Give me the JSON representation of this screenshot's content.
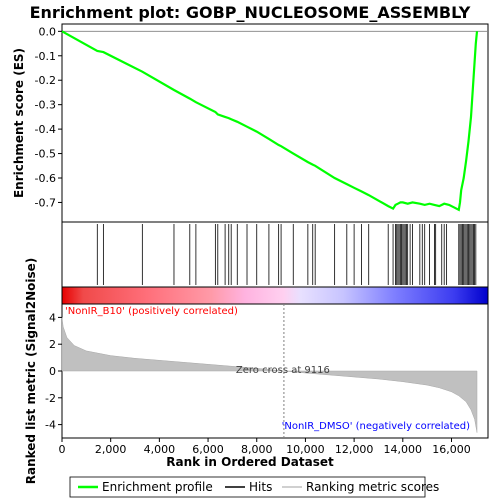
{
  "chart_data": {
    "type": "line",
    "title": "Enrichment plot: GOBP_NUCLEOSOME_ASSEMBLY",
    "colors": {
      "es_line": "#00ff00",
      "hits": "#000000",
      "metric_fill": "#c0c0c0",
      "pos_label": "#ff0000",
      "neg_label": "#0000ff",
      "zero_cross": "#808080"
    },
    "top_panel": {
      "ylabel": "Enrichment score (ES)",
      "ylim": [
        -0.78,
        0.03
      ],
      "yticks": [
        "0.0",
        "-0.1",
        "-0.2",
        "-0.3",
        "-0.4",
        "-0.5",
        "-0.6",
        "-0.7"
      ],
      "ytick_values": [
        0.0,
        -0.1,
        -0.2,
        -0.3,
        -0.4,
        -0.5,
        -0.6,
        -0.7
      ],
      "es_profile": {
        "x": [
          0,
          1450,
          1700,
          3300,
          4600,
          5250,
          5500,
          6300,
          6400,
          6700,
          6850,
          6950,
          7200,
          7600,
          8000,
          8500,
          8900,
          9000,
          9500,
          10100,
          10300,
          10400,
          11200,
          11700,
          12000,
          12300,
          12600,
          13400,
          13600,
          13700,
          13800,
          13900,
          14000,
          14200,
          14400,
          14700,
          14900,
          15100,
          15300,
          15500,
          15700,
          15900,
          16100,
          16300,
          16350,
          16400,
          16500,
          16600,
          16700,
          16800,
          16900,
          17000,
          17050
        ],
        "y": [
          0.0,
          -0.08,
          -0.085,
          -0.165,
          -0.24,
          -0.275,
          -0.29,
          -0.33,
          -0.34,
          -0.35,
          -0.355,
          -0.36,
          -0.37,
          -0.39,
          -0.41,
          -0.44,
          -0.465,
          -0.47,
          -0.5,
          -0.535,
          -0.545,
          -0.55,
          -0.6,
          -0.625,
          -0.64,
          -0.655,
          -0.67,
          -0.715,
          -0.725,
          -0.71,
          -0.705,
          -0.7,
          -0.7,
          -0.705,
          -0.7,
          -0.705,
          -0.71,
          -0.705,
          -0.71,
          -0.715,
          -0.705,
          -0.71,
          -0.72,
          -0.73,
          -0.7,
          -0.65,
          -0.6,
          -0.53,
          -0.45,
          -0.35,
          -0.2,
          -0.05,
          0.0
        ]
      }
    },
    "hits_panel": {
      "positions": [
        1450,
        1700,
        3300,
        4600,
        5250,
        5500,
        6300,
        6400,
        6700,
        6850,
        6950,
        7200,
        7600,
        8000,
        8500,
        8900,
        9000,
        9500,
        10100,
        10300,
        10400,
        11200,
        11700,
        12000,
        12300,
        12600,
        13400,
        13600,
        13700,
        13750,
        13800,
        13850,
        13900,
        13950,
        14000,
        14050,
        14100,
        14150,
        14200,
        14300,
        14400,
        14700,
        14800,
        14900,
        15100,
        15300,
        15350,
        15600,
        15700,
        15800,
        16300,
        16350,
        16400,
        16450,
        16500,
        16550,
        16600,
        16650,
        16700,
        16750,
        16800,
        16850,
        16900,
        16950,
        17000
      ]
    },
    "bottom_panel": {
      "ylabel": "Ranked list metric (Signal2Noise)",
      "xlabel": "Rank in Ordered Dataset",
      "ylim": [
        -5,
        5
      ],
      "yticks": [
        "4",
        "2",
        "0",
        "-2",
        "-4"
      ],
      "ytick_values": [
        4,
        2,
        0,
        -2,
        -4
      ],
      "xlim": [
        0,
        17500
      ],
      "xticks": [
        "0",
        "2,000",
        "4,000",
        "6,000",
        "8,000",
        "10,000",
        "12,000",
        "14,000",
        "16,000"
      ],
      "xtick_values": [
        0,
        2000,
        4000,
        6000,
        8000,
        10000,
        12000,
        14000,
        16000
      ],
      "metric": {
        "x": [
          0,
          50,
          200,
          500,
          1000,
          2000,
          3000,
          4000,
          5000,
          6000,
          7000,
          8000,
          9116,
          10000,
          11000,
          12000,
          13000,
          14000,
          15000,
          15500,
          16000,
          16300,
          16600,
          16800,
          16950,
          17050
        ],
        "y": [
          4.0,
          3.3,
          2.5,
          1.9,
          1.5,
          1.15,
          0.95,
          0.8,
          0.65,
          0.5,
          0.35,
          0.2,
          0.0,
          -0.15,
          -0.3,
          -0.45,
          -0.6,
          -0.8,
          -1.05,
          -1.25,
          -1.55,
          -1.85,
          -2.3,
          -2.9,
          -3.6,
          -4.6
        ]
      },
      "zero_cross_label": "Zero cross at 9116",
      "zero_cross_x": 9116,
      "pos_label": "'NonIR_B10' (positively correlated)",
      "neg_label": "'NonIR_DMSO' (negatively correlated)"
    },
    "legend": {
      "placement": "bottom",
      "entries": [
        "Enrichment profile",
        "Hits",
        "Ranking metric scores"
      ]
    }
  }
}
